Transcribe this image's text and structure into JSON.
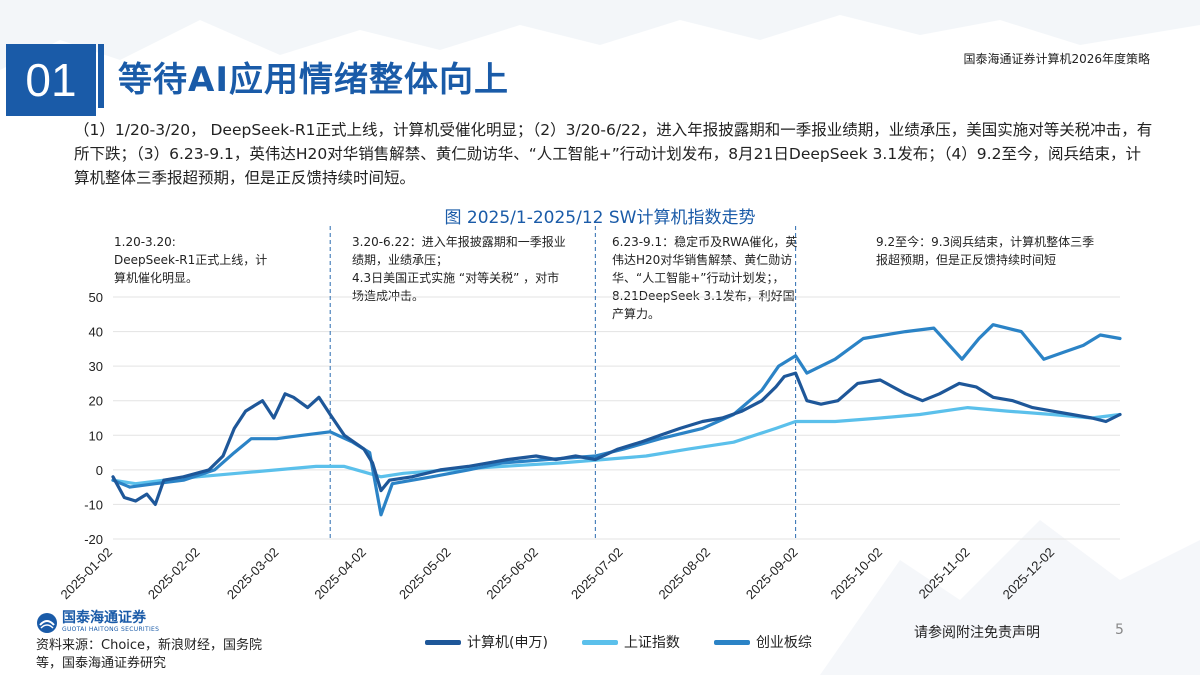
{
  "header": {
    "slide_number": "01",
    "title": "等待AI应用情绪整体向上",
    "report_tag": "国泰海通证券计算机2026年度策略"
  },
  "summary": "（1）1/20-3/20，  DeepSeek-R1正式上线，计算机受催化明显；（2）3/20-6/22，进入年报披露期和一季报业绩期，业绩承压，美国实施对等关税冲击，有所下跌；（3）6.23-9.1，英伟达H20对华销售解禁、黄仁勋访华、“人工智能+”行动计划发布，8月21日DeepSeek 3.1发布；（4）9.2至今，阅兵结束，计算机整体三季报超预期，但是正反馈持续时间短。",
  "annotations": [
    "1.20-3.20:\nDeepSeek-R1正式上线，计算机催化明显。",
    "3.20-6.22：进入年报披露期和一季报业绩期，业绩承压；\n4.3日美国正式实施 “对等关税” ，对市场造成冲击。",
    "6.23-9.1：稳定币及RWA催化，英伟达H20对华销售解禁、黄仁勋访华、“人工智能+”行动计划发；，\n8.21DeepSeek 3.1发布，利好国产算力。",
    "9.2至今：9.3阅兵结束，计算机整体三季报超预期，但是正反馈持续时间短"
  ],
  "footer": {
    "logo_cn": "国泰海通证券",
    "logo_en": "GUOTAI HAITONG SECURITIES",
    "source": "资料来源：Choice，新浪财经，国务院等，国泰海通证券研究",
    "disclaimer": "请参阅附注免责声明",
    "page": "5"
  },
  "colors": {
    "brand": "#1a5ba8",
    "computer": "#1e5799",
    "shanghai": "#5bc0eb",
    "chinext": "#2b83c6"
  },
  "chart_data": {
    "type": "line",
    "title": "图 2025/1-2025/12 SW计算机指数走势",
    "ylim": [
      -20,
      50
    ],
    "yticks": [
      -20,
      -10,
      0,
      10,
      20,
      30,
      40,
      50
    ],
    "x_ticks": [
      "2025-01-02",
      "2025-02-02",
      "2025-03-02",
      "2025-04-02",
      "2025-05-02",
      "2025-06-02",
      "2025-07-02",
      "2025-08-02",
      "2025-09-02",
      "2025-10-02",
      "2025-11-02",
      "2025-12-02"
    ],
    "x_start": "2025-01-02",
    "x_end": "2025-12-25",
    "phase_dividers": [
      "2025-03-20",
      "2025-06-22",
      "2025-09-01"
    ],
    "grid": true,
    "legend_position": "bottom",
    "series": [
      {
        "name": "计算机(申万)",
        "color": "#1e5799",
        "points": [
          [
            "2025-01-02",
            -2
          ],
          [
            "2025-01-06",
            -8
          ],
          [
            "2025-01-10",
            -9
          ],
          [
            "2025-01-14",
            -7
          ],
          [
            "2025-01-17",
            -10
          ],
          [
            "2025-01-20",
            -3
          ],
          [
            "2025-01-27",
            -2
          ],
          [
            "2025-02-05",
            0
          ],
          [
            "2025-02-10",
            4
          ],
          [
            "2025-02-14",
            12
          ],
          [
            "2025-02-18",
            17
          ],
          [
            "2025-02-24",
            20
          ],
          [
            "2025-02-28",
            15
          ],
          [
            "2025-03-04",
            22
          ],
          [
            "2025-03-07",
            21
          ],
          [
            "2025-03-12",
            18
          ],
          [
            "2025-03-16",
            21
          ],
          [
            "2025-03-20",
            16
          ],
          [
            "2025-03-25",
            10
          ],
          [
            "2025-04-01",
            6
          ],
          [
            "2025-04-04",
            2
          ],
          [
            "2025-04-07",
            -6
          ],
          [
            "2025-04-10",
            -3
          ],
          [
            "2025-04-18",
            -2
          ],
          [
            "2025-04-28",
            0
          ],
          [
            "2025-05-08",
            1
          ],
          [
            "2025-05-15",
            2
          ],
          [
            "2025-05-22",
            3
          ],
          [
            "2025-06-01",
            4
          ],
          [
            "2025-06-08",
            3
          ],
          [
            "2025-06-15",
            4
          ],
          [
            "2025-06-22",
            3
          ],
          [
            "2025-06-30",
            6
          ],
          [
            "2025-07-08",
            8
          ],
          [
            "2025-07-15",
            10
          ],
          [
            "2025-07-22",
            12
          ],
          [
            "2025-07-30",
            14
          ],
          [
            "2025-08-06",
            15
          ],
          [
            "2025-08-13",
            17
          ],
          [
            "2025-08-20",
            20
          ],
          [
            "2025-08-25",
            24
          ],
          [
            "2025-08-28",
            27
          ],
          [
            "2025-09-01",
            28
          ],
          [
            "2025-09-05",
            20
          ],
          [
            "2025-09-10",
            19
          ],
          [
            "2025-09-16",
            20
          ],
          [
            "2025-09-23",
            25
          ],
          [
            "2025-10-01",
            26
          ],
          [
            "2025-10-10",
            22
          ],
          [
            "2025-10-16",
            20
          ],
          [
            "2025-10-22",
            22
          ],
          [
            "2025-10-29",
            25
          ],
          [
            "2025-11-04",
            24
          ],
          [
            "2025-11-10",
            21
          ],
          [
            "2025-11-17",
            20
          ],
          [
            "2025-11-24",
            18
          ],
          [
            "2025-12-01",
            17
          ],
          [
            "2025-12-08",
            16
          ],
          [
            "2025-12-15",
            15
          ],
          [
            "2025-12-20",
            14
          ],
          [
            "2025-12-25",
            16
          ]
        ]
      },
      {
        "name": "上证指数",
        "color": "#5bc0eb",
        "points": [
          [
            "2025-01-02",
            -3
          ],
          [
            "2025-01-10",
            -4
          ],
          [
            "2025-01-20",
            -3
          ],
          [
            "2025-02-01",
            -2
          ],
          [
            "2025-02-15",
            -1
          ],
          [
            "2025-03-01",
            0
          ],
          [
            "2025-03-15",
            1
          ],
          [
            "2025-03-25",
            1
          ],
          [
            "2025-04-07",
            -2
          ],
          [
            "2025-04-15",
            -1
          ],
          [
            "2025-05-01",
            0
          ],
          [
            "2025-05-20",
            1
          ],
          [
            "2025-06-10",
            2
          ],
          [
            "2025-06-25",
            3
          ],
          [
            "2025-07-10",
            4
          ],
          [
            "2025-07-25",
            6
          ],
          [
            "2025-08-10",
            8
          ],
          [
            "2025-08-25",
            12
          ],
          [
            "2025-09-01",
            14
          ],
          [
            "2025-09-15",
            14
          ],
          [
            "2025-10-01",
            15
          ],
          [
            "2025-10-15",
            16
          ],
          [
            "2025-11-01",
            18
          ],
          [
            "2025-11-15",
            17
          ],
          [
            "2025-12-01",
            16
          ],
          [
            "2025-12-15",
            15
          ],
          [
            "2025-12-25",
            16
          ]
        ]
      },
      {
        "name": "创业板综",
        "color": "#2b83c6",
        "points": [
          [
            "2025-01-02",
            -3
          ],
          [
            "2025-01-08",
            -5
          ],
          [
            "2025-01-17",
            -4
          ],
          [
            "2025-01-27",
            -3
          ],
          [
            "2025-02-07",
            0
          ],
          [
            "2025-02-14",
            5
          ],
          [
            "2025-02-20",
            9
          ],
          [
            "2025-03-01",
            9
          ],
          [
            "2025-03-10",
            10
          ],
          [
            "2025-03-20",
            11
          ],
          [
            "2025-03-28",
            8
          ],
          [
            "2025-04-03",
            5
          ],
          [
            "2025-04-07",
            -13
          ],
          [
            "2025-04-11",
            -4
          ],
          [
            "2025-04-25",
            -2
          ],
          [
            "2025-05-08",
            0
          ],
          [
            "2025-05-20",
            2
          ],
          [
            "2025-06-05",
            3
          ],
          [
            "2025-06-22",
            4
          ],
          [
            "2025-07-02",
            6
          ],
          [
            "2025-07-15",
            9
          ],
          [
            "2025-07-30",
            12
          ],
          [
            "2025-08-10",
            16
          ],
          [
            "2025-08-20",
            23
          ],
          [
            "2025-08-26",
            30
          ],
          [
            "2025-09-01",
            33
          ],
          [
            "2025-09-05",
            28
          ],
          [
            "2025-09-15",
            32
          ],
          [
            "2025-09-25",
            38
          ],
          [
            "2025-10-10",
            40
          ],
          [
            "2025-10-20",
            41
          ],
          [
            "2025-10-30",
            32
          ],
          [
            "2025-11-05",
            38
          ],
          [
            "2025-11-10",
            42
          ],
          [
            "2025-11-20",
            40
          ],
          [
            "2025-11-28",
            32
          ],
          [
            "2025-12-05",
            34
          ],
          [
            "2025-12-12",
            36
          ],
          [
            "2025-12-18",
            39
          ],
          [
            "2025-12-25",
            38
          ]
        ]
      }
    ]
  }
}
